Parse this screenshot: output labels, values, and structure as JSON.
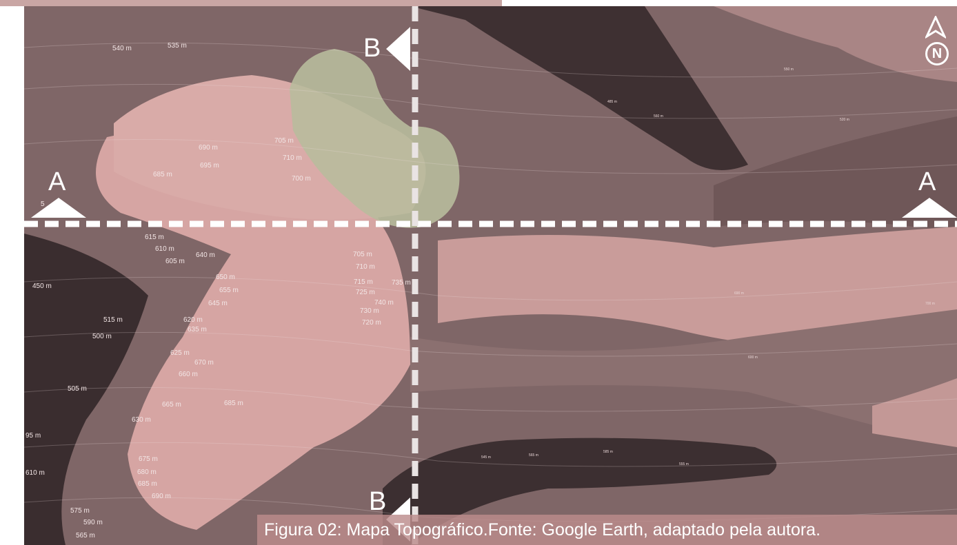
{
  "map": {
    "section_labels": {
      "a_left": "A",
      "a_right": "A",
      "b_top": "B",
      "b_bottom": "B"
    },
    "north_label": "N",
    "caption": "Figura 02: Mapa Topográfico.Fonte: Google Earth, adaptado pela autora.",
    "colors": {
      "light_zone": "#d8a9a6",
      "mid_zone": "#8f7474",
      "dark_zone": "#3f3133",
      "focus_area": "#b9bc9e",
      "cut_line": "#ffffff"
    },
    "elevation_labels": [
      "540 m",
      "535 m",
      "690 m",
      "705 m",
      "710 m",
      "695 m",
      "685 m",
      "700 m",
      "5",
      "615 m",
      "610 m",
      "605 m",
      "640 m",
      "450 m",
      "650 m",
      "655 m",
      "645 m",
      "705 m",
      "710 m",
      "715 m",
      "735 m",
      "725 m",
      "740 m",
      "730 m",
      "720 m",
      "515 m",
      "500 m",
      "620 m",
      "635 m",
      "625 m",
      "670 m",
      "660 m",
      "505 m",
      "665 m",
      "685 m",
      "630 m",
      "95 m",
      "675 m",
      "680 m",
      "685 m",
      "690 m",
      "610 m",
      "575 m",
      "590 m",
      "565 m"
    ],
    "small_labels": [
      "485 m",
      "560 m",
      "520 m",
      "550 m",
      "545 m",
      "565 m",
      "555 m",
      "585 m",
      "690 m",
      "700 m",
      "600 m"
    ]
  }
}
